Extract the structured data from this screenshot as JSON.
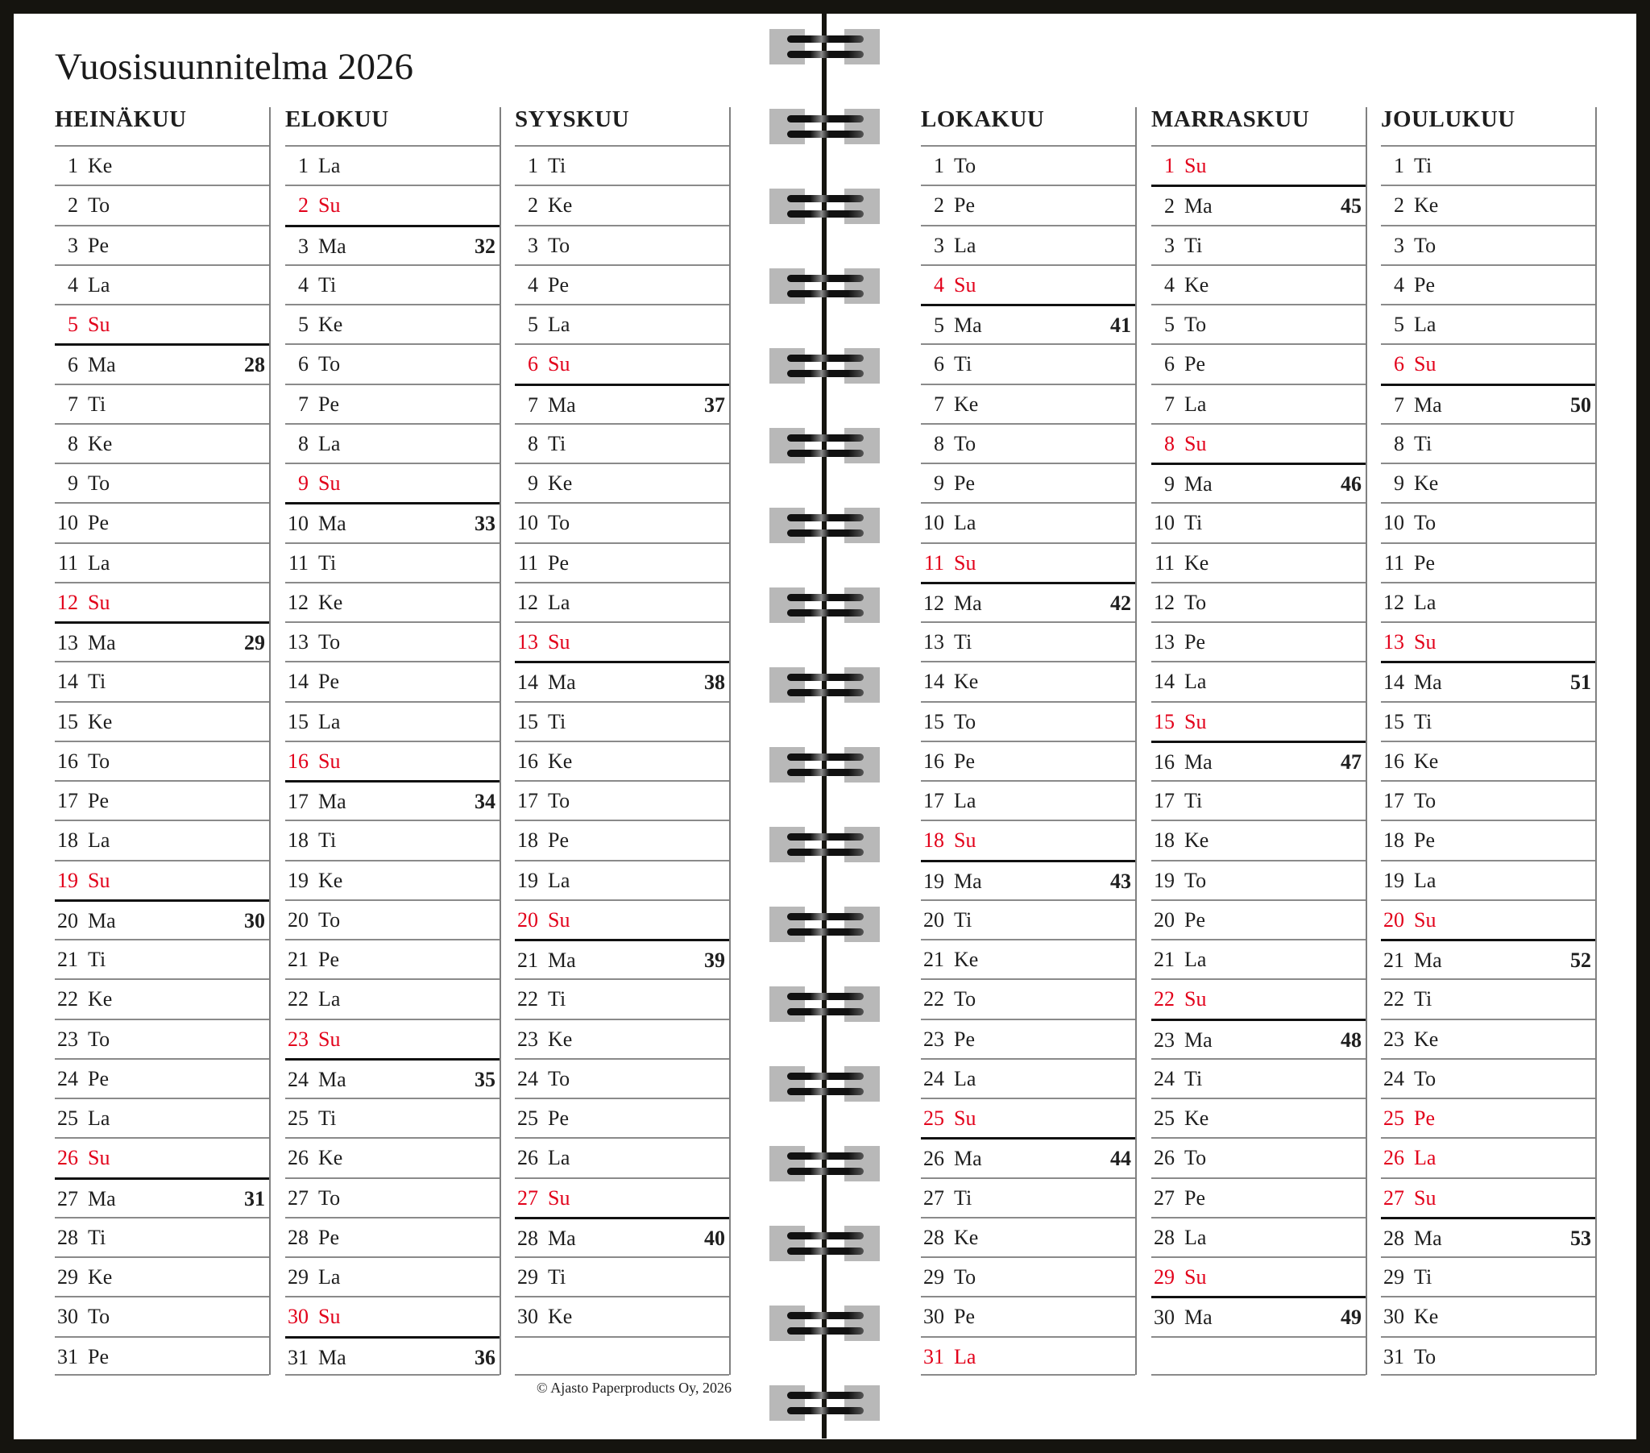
{
  "title": "Vuosisuunnitelma 2026",
  "copyright": "© Ajasto Paperproducts Oy, 2026",
  "colors": {
    "red": "#e2001a",
    "text": "#1e1e1e",
    "frame": "#15140f"
  },
  "months": [
    {
      "name": "HEINÄKUU",
      "days": [
        {
          "d": "1",
          "w": "Ke"
        },
        {
          "d": "2",
          "w": "To"
        },
        {
          "d": "3",
          "w": "Pe"
        },
        {
          "d": "4",
          "w": "La"
        },
        {
          "d": "5",
          "w": "Su",
          "red": true
        },
        {
          "d": "6",
          "w": "Ma",
          "wk": "28"
        },
        {
          "d": "7",
          "w": "Ti"
        },
        {
          "d": "8",
          "w": "Ke"
        },
        {
          "d": "9",
          "w": "To"
        },
        {
          "d": "10",
          "w": "Pe"
        },
        {
          "d": "11",
          "w": "La"
        },
        {
          "d": "12",
          "w": "Su",
          "red": true
        },
        {
          "d": "13",
          "w": "Ma",
          "wk": "29"
        },
        {
          "d": "14",
          "w": "Ti"
        },
        {
          "d": "15",
          "w": "Ke"
        },
        {
          "d": "16",
          "w": "To"
        },
        {
          "d": "17",
          "w": "Pe"
        },
        {
          "d": "18",
          "w": "La"
        },
        {
          "d": "19",
          "w": "Su",
          "red": true
        },
        {
          "d": "20",
          "w": "Ma",
          "wk": "30"
        },
        {
          "d": "21",
          "w": "Ti"
        },
        {
          "d": "22",
          "w": "Ke"
        },
        {
          "d": "23",
          "w": "To"
        },
        {
          "d": "24",
          "w": "Pe"
        },
        {
          "d": "25",
          "w": "La"
        },
        {
          "d": "26",
          "w": "Su",
          "red": true
        },
        {
          "d": "27",
          "w": "Ma",
          "wk": "31"
        },
        {
          "d": "28",
          "w": "Ti"
        },
        {
          "d": "29",
          "w": "Ke"
        },
        {
          "d": "30",
          "w": "To"
        },
        {
          "d": "31",
          "w": "Pe"
        }
      ]
    },
    {
      "name": "ELOKUU",
      "days": [
        {
          "d": "1",
          "w": "La"
        },
        {
          "d": "2",
          "w": "Su",
          "red": true
        },
        {
          "d": "3",
          "w": "Ma",
          "wk": "32"
        },
        {
          "d": "4",
          "w": "Ti"
        },
        {
          "d": "5",
          "w": "Ke"
        },
        {
          "d": "6",
          "w": "To"
        },
        {
          "d": "7",
          "w": "Pe"
        },
        {
          "d": "8",
          "w": "La"
        },
        {
          "d": "9",
          "w": "Su",
          "red": true
        },
        {
          "d": "10",
          "w": "Ma",
          "wk": "33"
        },
        {
          "d": "11",
          "w": "Ti"
        },
        {
          "d": "12",
          "w": "Ke"
        },
        {
          "d": "13",
          "w": "To"
        },
        {
          "d": "14",
          "w": "Pe"
        },
        {
          "d": "15",
          "w": "La"
        },
        {
          "d": "16",
          "w": "Su",
          "red": true
        },
        {
          "d": "17",
          "w": "Ma",
          "wk": "34"
        },
        {
          "d": "18",
          "w": "Ti"
        },
        {
          "d": "19",
          "w": "Ke"
        },
        {
          "d": "20",
          "w": "To"
        },
        {
          "d": "21",
          "w": "Pe"
        },
        {
          "d": "22",
          "w": "La"
        },
        {
          "d": "23",
          "w": "Su",
          "red": true
        },
        {
          "d": "24",
          "w": "Ma",
          "wk": "35"
        },
        {
          "d": "25",
          "w": "Ti"
        },
        {
          "d": "26",
          "w": "Ke"
        },
        {
          "d": "27",
          "w": "To"
        },
        {
          "d": "28",
          "w": "Pe"
        },
        {
          "d": "29",
          "w": "La"
        },
        {
          "d": "30",
          "w": "Su",
          "red": true
        },
        {
          "d": "31",
          "w": "Ma",
          "wk": "36"
        }
      ]
    },
    {
      "name": "SYYSKUU",
      "days": [
        {
          "d": "1",
          "w": "Ti"
        },
        {
          "d": "2",
          "w": "Ke"
        },
        {
          "d": "3",
          "w": "To"
        },
        {
          "d": "4",
          "w": "Pe"
        },
        {
          "d": "5",
          "w": "La"
        },
        {
          "d": "6",
          "w": "Su",
          "red": true
        },
        {
          "d": "7",
          "w": "Ma",
          "wk": "37"
        },
        {
          "d": "8",
          "w": "Ti"
        },
        {
          "d": "9",
          "w": "Ke"
        },
        {
          "d": "10",
          "w": "To"
        },
        {
          "d": "11",
          "w": "Pe"
        },
        {
          "d": "12",
          "w": "La"
        },
        {
          "d": "13",
          "w": "Su",
          "red": true
        },
        {
          "d": "14",
          "w": "Ma",
          "wk": "38"
        },
        {
          "d": "15",
          "w": "Ti"
        },
        {
          "d": "16",
          "w": "Ke"
        },
        {
          "d": "17",
          "w": "To"
        },
        {
          "d": "18",
          "w": "Pe"
        },
        {
          "d": "19",
          "w": "La"
        },
        {
          "d": "20",
          "w": "Su",
          "red": true
        },
        {
          "d": "21",
          "w": "Ma",
          "wk": "39"
        },
        {
          "d": "22",
          "w": "Ti"
        },
        {
          "d": "23",
          "w": "Ke"
        },
        {
          "d": "24",
          "w": "To"
        },
        {
          "d": "25",
          "w": "Pe"
        },
        {
          "d": "26",
          "w": "La"
        },
        {
          "d": "27",
          "w": "Su",
          "red": true
        },
        {
          "d": "28",
          "w": "Ma",
          "wk": "40"
        },
        {
          "d": "29",
          "w": "Ti"
        },
        {
          "d": "30",
          "w": "Ke"
        }
      ]
    },
    {
      "name": "LOKAKUU",
      "days": [
        {
          "d": "1",
          "w": "To"
        },
        {
          "d": "2",
          "w": "Pe"
        },
        {
          "d": "3",
          "w": "La"
        },
        {
          "d": "4",
          "w": "Su",
          "red": true
        },
        {
          "d": "5",
          "w": "Ma",
          "wk": "41"
        },
        {
          "d": "6",
          "w": "Ti"
        },
        {
          "d": "7",
          "w": "Ke"
        },
        {
          "d": "8",
          "w": "To"
        },
        {
          "d": "9",
          "w": "Pe"
        },
        {
          "d": "10",
          "w": "La"
        },
        {
          "d": "11",
          "w": "Su",
          "red": true
        },
        {
          "d": "12",
          "w": "Ma",
          "wk": "42"
        },
        {
          "d": "13",
          "w": "Ti"
        },
        {
          "d": "14",
          "w": "Ke"
        },
        {
          "d": "15",
          "w": "To"
        },
        {
          "d": "16",
          "w": "Pe"
        },
        {
          "d": "17",
          "w": "La"
        },
        {
          "d": "18",
          "w": "Su",
          "red": true
        },
        {
          "d": "19",
          "w": "Ma",
          "wk": "43"
        },
        {
          "d": "20",
          "w": "Ti"
        },
        {
          "d": "21",
          "w": "Ke"
        },
        {
          "d": "22",
          "w": "To"
        },
        {
          "d": "23",
          "w": "Pe"
        },
        {
          "d": "24",
          "w": "La"
        },
        {
          "d": "25",
          "w": "Su",
          "red": true
        },
        {
          "d": "26",
          "w": "Ma",
          "wk": "44"
        },
        {
          "d": "27",
          "w": "Ti"
        },
        {
          "d": "28",
          "w": "Ke"
        },
        {
          "d": "29",
          "w": "To"
        },
        {
          "d": "30",
          "w": "Pe"
        },
        {
          "d": "31",
          "w": "La",
          "red": true
        }
      ]
    },
    {
      "name": "MARRASKUU",
      "days": [
        {
          "d": "1",
          "w": "Su",
          "red": true
        },
        {
          "d": "2",
          "w": "Ma",
          "wk": "45"
        },
        {
          "d": "3",
          "w": "Ti"
        },
        {
          "d": "4",
          "w": "Ke"
        },
        {
          "d": "5",
          "w": "To"
        },
        {
          "d": "6",
          "w": "Pe"
        },
        {
          "d": "7",
          "w": "La"
        },
        {
          "d": "8",
          "w": "Su",
          "red": true
        },
        {
          "d": "9",
          "w": "Ma",
          "wk": "46"
        },
        {
          "d": "10",
          "w": "Ti"
        },
        {
          "d": "11",
          "w": "Ke"
        },
        {
          "d": "12",
          "w": "To"
        },
        {
          "d": "13",
          "w": "Pe"
        },
        {
          "d": "14",
          "w": "La"
        },
        {
          "d": "15",
          "w": "Su",
          "red": true
        },
        {
          "d": "16",
          "w": "Ma",
          "wk": "47"
        },
        {
          "d": "17",
          "w": "Ti"
        },
        {
          "d": "18",
          "w": "Ke"
        },
        {
          "d": "19",
          "w": "To"
        },
        {
          "d": "20",
          "w": "Pe"
        },
        {
          "d": "21",
          "w": "La"
        },
        {
          "d": "22",
          "w": "Su",
          "red": true
        },
        {
          "d": "23",
          "w": "Ma",
          "wk": "48"
        },
        {
          "d": "24",
          "w": "Ti"
        },
        {
          "d": "25",
          "w": "Ke"
        },
        {
          "d": "26",
          "w": "To"
        },
        {
          "d": "27",
          "w": "Pe"
        },
        {
          "d": "28",
          "w": "La"
        },
        {
          "d": "29",
          "w": "Su",
          "red": true
        },
        {
          "d": "30",
          "w": "Ma",
          "wk": "49"
        }
      ]
    },
    {
      "name": "JOULUKUU",
      "days": [
        {
          "d": "1",
          "w": "Ti"
        },
        {
          "d": "2",
          "w": "Ke"
        },
        {
          "d": "3",
          "w": "To"
        },
        {
          "d": "4",
          "w": "Pe"
        },
        {
          "d": "5",
          "w": "La"
        },
        {
          "d": "6",
          "w": "Su",
          "red": true
        },
        {
          "d": "7",
          "w": "Ma",
          "wk": "50"
        },
        {
          "d": "8",
          "w": "Ti"
        },
        {
          "d": "9",
          "w": "Ke"
        },
        {
          "d": "10",
          "w": "To"
        },
        {
          "d": "11",
          "w": "Pe"
        },
        {
          "d": "12",
          "w": "La"
        },
        {
          "d": "13",
          "w": "Su",
          "red": true
        },
        {
          "d": "14",
          "w": "Ma",
          "wk": "51"
        },
        {
          "d": "15",
          "w": "Ti"
        },
        {
          "d": "16",
          "w": "Ke"
        },
        {
          "d": "17",
          "w": "To"
        },
        {
          "d": "18",
          "w": "Pe"
        },
        {
          "d": "19",
          "w": "La"
        },
        {
          "d": "20",
          "w": "Su",
          "red": true
        },
        {
          "d": "21",
          "w": "Ma",
          "wk": "52"
        },
        {
          "d": "22",
          "w": "Ti"
        },
        {
          "d": "23",
          "w": "Ke"
        },
        {
          "d": "24",
          "w": "To"
        },
        {
          "d": "25",
          "w": "Pe",
          "red": true
        },
        {
          "d": "26",
          "w": "La",
          "red": true
        },
        {
          "d": "27",
          "w": "Su",
          "red": true
        },
        {
          "d": "28",
          "w": "Ma",
          "wk": "53"
        },
        {
          "d": "29",
          "w": "Ti"
        },
        {
          "d": "30",
          "w": "Ke"
        },
        {
          "d": "31",
          "w": "To"
        }
      ]
    }
  ]
}
